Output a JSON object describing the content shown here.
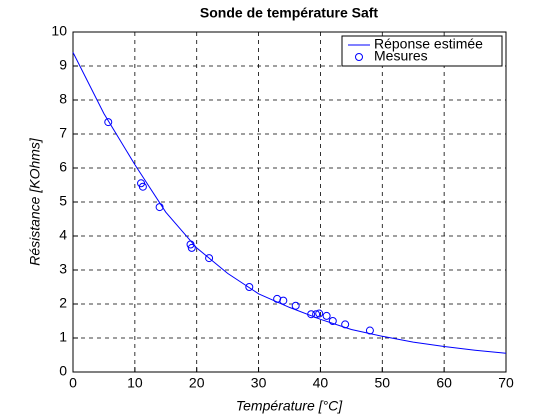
{
  "chart_data": {
    "type": "line",
    "title": "Sonde de température Saft",
    "x_label": "Température [°C]",
    "y_label": "Résistance [KOhms]",
    "xlim": [
      0,
      70
    ],
    "xticks": [
      0,
      10,
      20,
      30,
      40,
      50,
      60,
      70
    ],
    "ylim": [
      0,
      10
    ],
    "yticks": [
      0,
      1,
      2,
      3,
      4,
      5,
      6,
      7,
      8,
      9,
      10
    ],
    "grid": true,
    "legend": "top-right",
    "series": [
      {
        "name": "Réponse estimée",
        "color": "#0000ff",
        "style": "line",
        "x": [
          0,
          5,
          10,
          15,
          20,
          25,
          30,
          35,
          40,
          45,
          50,
          55,
          60,
          65,
          70
        ],
        "values": [
          9.4,
          7.6,
          6.1,
          4.7,
          3.65,
          2.9,
          2.3,
          1.9,
          1.55,
          1.25,
          1.05,
          0.88,
          0.75,
          0.64,
          0.55
        ]
      },
      {
        "name": "Mesures",
        "color": "#0000ff",
        "style": "marker",
        "x": [
          5.7,
          11,
          11.3,
          14,
          19,
          19.2,
          22,
          28.5,
          33,
          34,
          36,
          38.5,
          39.3,
          39.8,
          41,
          42,
          44,
          48
        ],
        "values": [
          7.35,
          5.55,
          5.45,
          4.85,
          3.75,
          3.65,
          3.35,
          2.5,
          2.15,
          2.1,
          1.95,
          1.7,
          1.7,
          1.72,
          1.65,
          1.5,
          1.4,
          1.22
        ]
      }
    ]
  }
}
